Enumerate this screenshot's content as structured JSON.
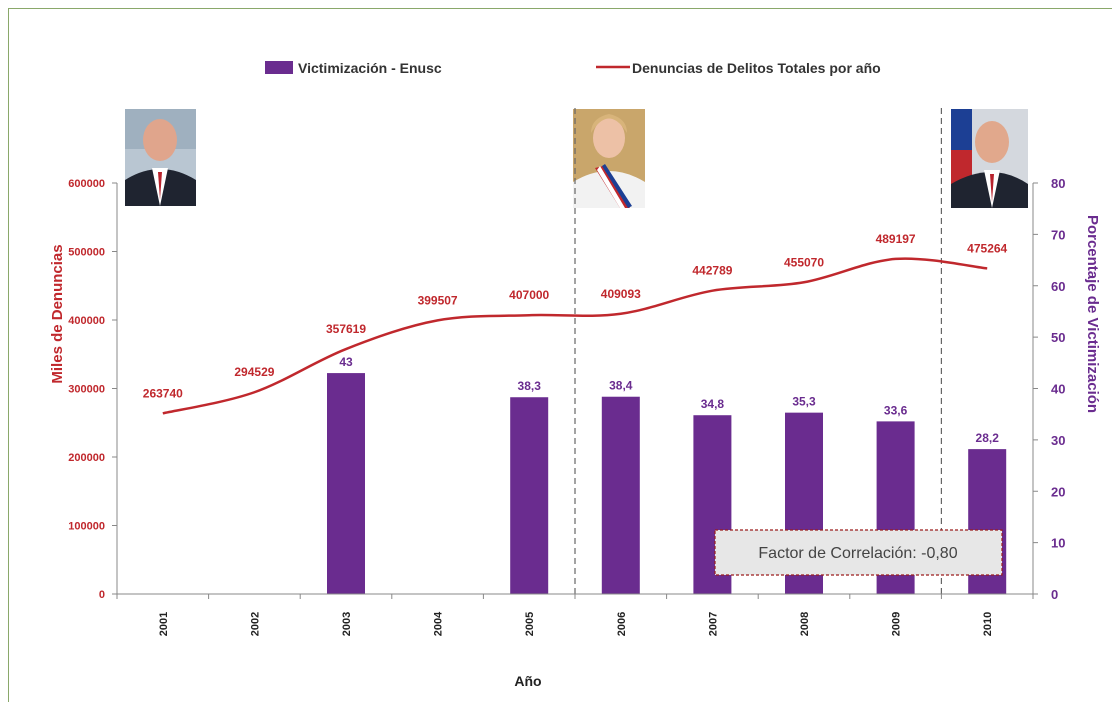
{
  "chart_data": {
    "type": "bar",
    "title": "",
    "xlabel": "Año",
    "ylabel_left": "Miles de Denuncias",
    "ylabel_right": "Porcentaje de Victimización",
    "categories": [
      "2001",
      "2002",
      "2003",
      "2004",
      "2005",
      "2006",
      "2007",
      "2008",
      "2009",
      "2010"
    ],
    "ylim_left": [
      0,
      600000
    ],
    "ylim_right": [
      0,
      80
    ],
    "yticks_left": [
      "0",
      "100000",
      "200000",
      "300000",
      "400000",
      "500000",
      "600000"
    ],
    "yticks_right": [
      "0",
      "10",
      "20",
      "30",
      "40",
      "50",
      "60",
      "70",
      "80"
    ],
    "legend_position": "top",
    "grid": false,
    "series": [
      {
        "name": "Victimización - Enusc",
        "kind": "bar",
        "axis": "right",
        "color": "#6a2c8f",
        "values": [
          null,
          null,
          43,
          null,
          38.3,
          38.4,
          34.8,
          35.3,
          33.6,
          28.2
        ],
        "labels": [
          "",
          "",
          "43",
          "",
          "38,3",
          "38,4",
          "34,8",
          "35,3",
          "33,6",
          "28,2"
        ]
      },
      {
        "name": "Denuncias de Delitos Totales por año",
        "kind": "line",
        "axis": "left",
        "color": "#c0282d",
        "values": [
          263740,
          294529,
          357619,
          399507,
          407000,
          409093,
          442789,
          455070,
          489197,
          475264
        ],
        "labels": [
          "263740",
          "294529",
          "357619",
          "399507",
          "407000",
          "409093",
          "442789",
          "455070",
          "489197",
          "475264"
        ]
      }
    ],
    "annotation": "Factor de Correlación: -0,80",
    "period_dividers": [
      2005.5,
      2009.5
    ]
  }
}
